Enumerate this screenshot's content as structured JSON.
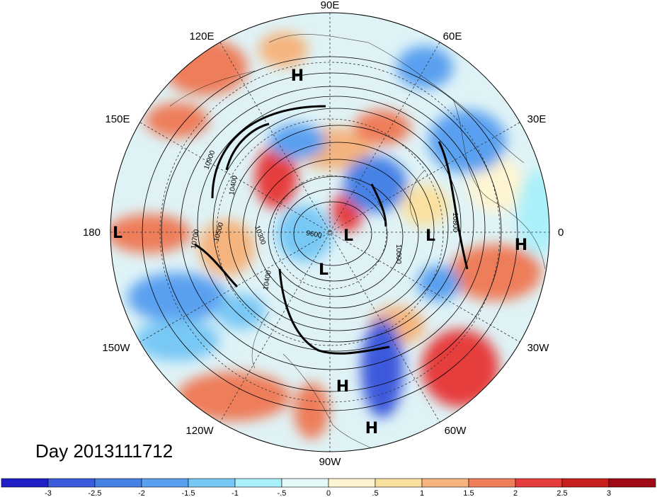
{
  "title": "Day 2013111712",
  "longitude_labels": [
    "90E",
    "60E",
    "30E",
    "0",
    "30W",
    "60W",
    "90W",
    "120W",
    "150W",
    "180",
    "150E",
    "120E"
  ],
  "pressure_centers": [
    {
      "label": "H",
      "region": "central-siberia"
    },
    {
      "label": "L",
      "region": "north-pacific-dateline"
    },
    {
      "label": "L",
      "region": "arctic-ocean"
    },
    {
      "label": "L",
      "region": "canadian-arctic"
    },
    {
      "label": "L",
      "region": "north-atlantic"
    },
    {
      "label": "H",
      "region": "west-africa"
    },
    {
      "label": "H",
      "region": "gulf-of-mexico"
    },
    {
      "label": "H",
      "region": "caribbean"
    }
  ],
  "contour_labels": [
    "10900",
    "10400",
    "10700",
    "10500",
    "10300",
    "10400",
    "9600",
    "10800",
    "10000"
  ],
  "colorbar": {
    "ticks": [
      "-3",
      "-2.5",
      "-2",
      "-1.5",
      "-1",
      "-.5",
      "0",
      ".5",
      "1",
      "1.5",
      "2",
      "2.5",
      "3"
    ],
    "colors": [
      "#1e1ec8",
      "#3c5adc",
      "#4682e6",
      "#5aa0f0",
      "#78c8f5",
      "#aaf0fa",
      "#e6fafa",
      "#fff5d2",
      "#fae1a0",
      "#f5b47d",
      "#ee7d5a",
      "#e63c3c",
      "#c81e1e",
      "#a00a14"
    ]
  }
}
